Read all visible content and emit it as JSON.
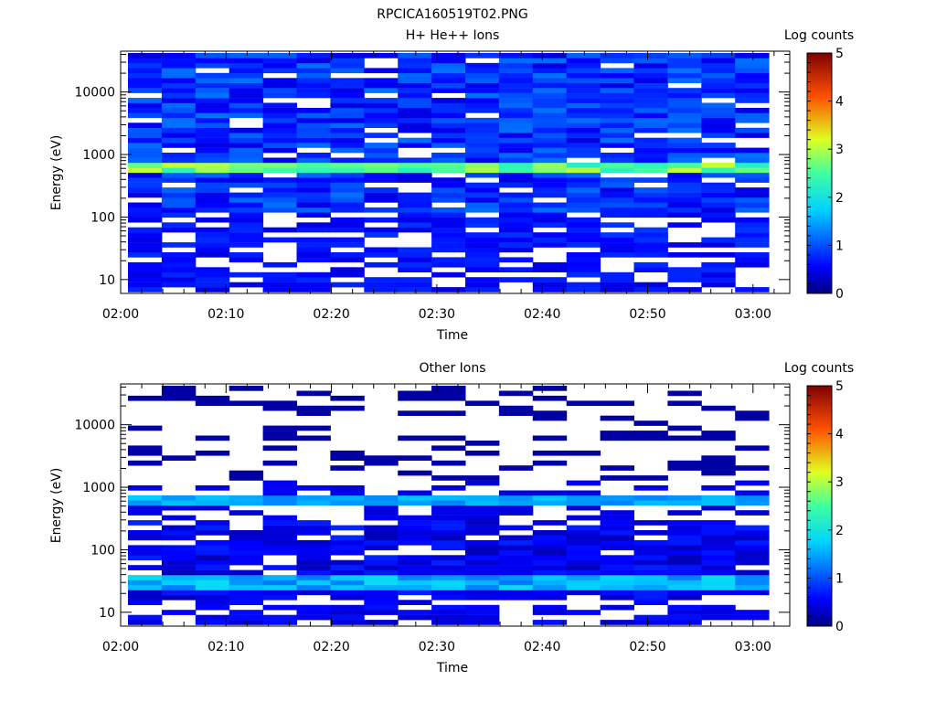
{
  "figure": {
    "title": "RPCICA160519T02.PNG"
  },
  "colors": {
    "accent_band": "#2ee7c8",
    "background": "#ffffff"
  },
  "chart_data": [
    {
      "type": "heatmap",
      "title": "H+ He++ Ions",
      "xlabel": "Time",
      "ylabel": "Energy (eV)",
      "x_ticks": [
        "02:00",
        "02:10",
        "02:20",
        "02:30",
        "02:40",
        "02:50",
        "03:00"
      ],
      "xlim": [
        "02:00",
        "03:03"
      ],
      "y_scale": "log",
      "ylim": [
        6,
        45000
      ],
      "y_ticks": [
        "10",
        "100",
        "1000",
        "10000"
      ],
      "colorbar": {
        "label": "Log counts",
        "ticks": [
          "0",
          "1",
          "2",
          "3",
          "4",
          "5"
        ],
        "range": [
          0,
          5
        ]
      },
      "time_bins": 19,
      "bin_minutes": 3.2,
      "description": "Log counts 0.4-1.2 across 100 eV-40 keV with a bright band of 2.2-3.1 near 600-700 eV; sparse data below 30 eV.",
      "band": {
        "energy_eV": [
          560,
          730
        ],
        "log_counts": [
          2.2,
          3.1
        ]
      }
    },
    {
      "type": "heatmap",
      "title": "Other Ions",
      "xlabel": "Time",
      "ylabel": "Energy (eV)",
      "x_ticks": [
        "02:00",
        "02:10",
        "02:20",
        "02:30",
        "02:40",
        "02:50",
        "03:00"
      ],
      "xlim": [
        "02:00",
        "03:03"
      ],
      "y_scale": "log",
      "ylim": [
        6,
        45000
      ],
      "y_ticks": [
        "10",
        "100",
        "1000",
        "10000"
      ],
      "colorbar": {
        "label": "Log counts",
        "ticks": [
          "0",
          "1",
          "2",
          "3",
          "4",
          "5"
        ],
        "range": [
          0,
          5
        ]
      },
      "time_bins": 19,
      "bin_minutes": 3.2,
      "description": "Sparse low counts above 1 keV, a cyan band near 600-700 eV (~1.5), denser counts 20-300 eV with a bright band at 25-40 eV (~1.3-1.8).",
      "bands": [
        {
          "energy_eV": [
            560,
            730
          ],
          "log_counts": [
            1.3,
            1.7
          ]
        },
        {
          "energy_eV": [
            24,
            42
          ],
          "log_counts": [
            1.2,
            1.9
          ]
        }
      ]
    }
  ]
}
